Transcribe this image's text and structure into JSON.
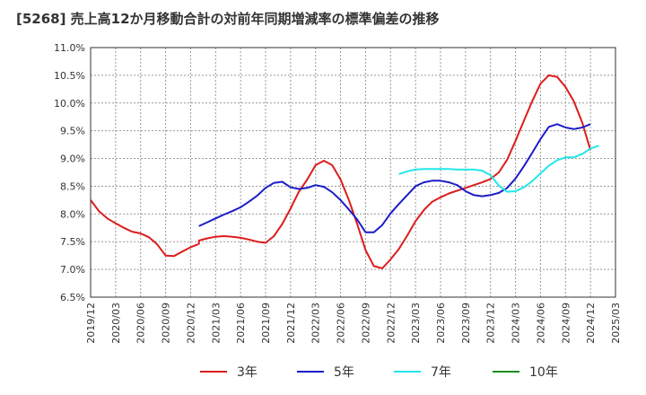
{
  "title": "[5268]  売上高12か月移動合計の対前年同期増減率の標準偏差の推移",
  "chart_data": {
    "type": "line",
    "title": "[5268]  売上高12か月移動合計の対前年同期増減率の標準偏差の推移",
    "xlabel": "",
    "ylabel": "",
    "ylim": [
      6.5,
      11.0
    ],
    "y_ticks": [
      "6.5%",
      "7.0%",
      "7.5%",
      "8.0%",
      "8.5%",
      "9.0%",
      "9.5%",
      "10.0%",
      "10.5%",
      "11.0%"
    ],
    "x_ticks": [
      "2019/12",
      "2020/03",
      "2020/06",
      "2020/09",
      "2020/12",
      "2021/03",
      "2021/06",
      "2021/09",
      "2021/12",
      "2022/03",
      "2022/06",
      "2022/09",
      "2022/12",
      "2023/03",
      "2023/06",
      "2023/09",
      "2023/12",
      "2024/03",
      "2024/06",
      "2024/09",
      "2024/12",
      "2025/03"
    ],
    "grid": true,
    "legend_position": "bottom",
    "series": [
      {
        "name": "3年",
        "color": "#dd1c1c",
        "points": [
          [
            "2019/12",
            8.25
          ],
          [
            "2020/01",
            8.05
          ],
          [
            "2020/02",
            7.92
          ],
          [
            "2020/03",
            7.83
          ],
          [
            "2020/04",
            7.75
          ],
          [
            "2020/05",
            7.68
          ],
          [
            "2020/06",
            7.65
          ],
          [
            "2020/07",
            7.58
          ],
          [
            "2020/08",
            7.45
          ],
          [
            "2020/09",
            7.25
          ],
          [
            "2020/10",
            7.24
          ],
          [
            "2020/11",
            7.32
          ],
          [
            "2020/12",
            7.4
          ],
          [
            "2020/13",
            7.46
          ],
          [
            "2021/01",
            7.52
          ],
          [
            "2021/02",
            7.56
          ],
          [
            "2021/03",
            7.59
          ],
          [
            "2021/04",
            7.6
          ],
          [
            "2021/05",
            7.59
          ],
          [
            "2021/06",
            7.57
          ],
          [
            "2021/07",
            7.54
          ],
          [
            "2021/08",
            7.5
          ],
          [
            "2021/09",
            7.48
          ],
          [
            "2021/10",
            7.6
          ],
          [
            "2021/11",
            7.82
          ],
          [
            "2021/12",
            8.1
          ],
          [
            "2022/01",
            8.4
          ],
          [
            "2022/02",
            8.62
          ],
          [
            "2022/03",
            8.88
          ],
          [
            "2022/04",
            8.96
          ],
          [
            "2022/05",
            8.88
          ],
          [
            "2022/06",
            8.62
          ],
          [
            "2022/07",
            8.25
          ],
          [
            "2022/08",
            7.82
          ],
          [
            "2022/09",
            7.35
          ],
          [
            "2022/10",
            7.06
          ],
          [
            "2022/11",
            7.02
          ],
          [
            "2022/12",
            7.18
          ],
          [
            "2023/01",
            7.37
          ],
          [
            "2023/02",
            7.61
          ],
          [
            "2023/03",
            7.87
          ],
          [
            "2023/04",
            8.07
          ],
          [
            "2023/05",
            8.22
          ],
          [
            "2023/06",
            8.3
          ],
          [
            "2023/07",
            8.37
          ],
          [
            "2023/08",
            8.42
          ],
          [
            "2023/09",
            8.47
          ],
          [
            "2023/10",
            8.52
          ],
          [
            "2023/11",
            8.57
          ],
          [
            "2023/12",
            8.63
          ],
          [
            "2024/01",
            8.75
          ],
          [
            "2024/02",
            8.98
          ],
          [
            "2024/03",
            9.32
          ],
          [
            "2024/04",
            9.68
          ],
          [
            "2024/05",
            10.03
          ],
          [
            "2024/06",
            10.35
          ],
          [
            "2024/07",
            10.5
          ],
          [
            "2024/08",
            10.47
          ],
          [
            "2024/09",
            10.29
          ],
          [
            "2024/10",
            10.03
          ],
          [
            "2024/11",
            9.65
          ],
          [
            "2024/12",
            9.15
          ]
        ]
      },
      {
        "name": "5年",
        "color": "#1c1cc8",
        "points": [
          [
            "2021/01",
            7.78
          ],
          [
            "2021/02",
            7.85
          ],
          [
            "2021/03",
            7.92
          ],
          [
            "2021/04",
            7.99
          ],
          [
            "2021/05",
            8.05
          ],
          [
            "2021/06",
            8.12
          ],
          [
            "2021/07",
            8.22
          ],
          [
            "2021/08",
            8.33
          ],
          [
            "2021/09",
            8.47
          ],
          [
            "2021/10",
            8.56
          ],
          [
            "2021/11",
            8.58
          ],
          [
            "2021/12",
            8.48
          ],
          [
            "2022/01",
            8.45
          ],
          [
            "2022/02",
            8.47
          ],
          [
            "2022/03",
            8.52
          ],
          [
            "2022/04",
            8.49
          ],
          [
            "2022/05",
            8.39
          ],
          [
            "2022/06",
            8.25
          ],
          [
            "2022/07",
            8.08
          ],
          [
            "2022/08",
            7.9
          ],
          [
            "2022/09",
            7.67
          ],
          [
            "2022/10",
            7.67
          ],
          [
            "2022/11",
            7.8
          ],
          [
            "2022/12",
            8.01
          ],
          [
            "2023/01",
            8.18
          ],
          [
            "2023/02",
            8.34
          ],
          [
            "2023/03",
            8.5
          ],
          [
            "2023/04",
            8.57
          ],
          [
            "2023/05",
            8.6
          ],
          [
            "2023/06",
            8.6
          ],
          [
            "2023/07",
            8.57
          ],
          [
            "2023/08",
            8.52
          ],
          [
            "2023/09",
            8.41
          ],
          [
            "2023/10",
            8.34
          ],
          [
            "2023/11",
            8.32
          ],
          [
            "2023/12",
            8.34
          ],
          [
            "2024/01",
            8.38
          ],
          [
            "2024/02",
            8.47
          ],
          [
            "2024/03",
            8.64
          ],
          [
            "2024/04",
            8.86
          ],
          [
            "2024/05",
            9.1
          ],
          [
            "2024/06",
            9.35
          ],
          [
            "2024/07",
            9.57
          ],
          [
            "2024/08",
            9.62
          ],
          [
            "2024/09",
            9.56
          ],
          [
            "2024/10",
            9.53
          ],
          [
            "2024/11",
            9.56
          ],
          [
            "2024/12",
            9.62
          ]
        ]
      },
      {
        "name": "7年",
        "color": "#22e6ea",
        "points": [
          [
            "2023/01",
            8.72
          ],
          [
            "2023/02",
            8.77
          ],
          [
            "2023/03",
            8.8
          ],
          [
            "2023/04",
            8.81
          ],
          [
            "2023/05",
            8.81
          ],
          [
            "2023/06",
            8.81
          ],
          [
            "2023/07",
            8.81
          ],
          [
            "2023/08",
            8.8
          ],
          [
            "2023/09",
            8.8
          ],
          [
            "2023/10",
            8.8
          ],
          [
            "2023/11",
            8.78
          ],
          [
            "2023/12",
            8.7
          ],
          [
            "2024/01",
            8.51
          ],
          [
            "2024/02",
            8.4
          ],
          [
            "2024/03",
            8.41
          ],
          [
            "2024/04",
            8.48
          ],
          [
            "2024/05",
            8.59
          ],
          [
            "2024/06",
            8.73
          ],
          [
            "2024/07",
            8.87
          ],
          [
            "2024/08",
            8.97
          ],
          [
            "2024/09",
            9.02
          ],
          [
            "2024/10",
            9.02
          ],
          [
            "2024/11",
            9.08
          ],
          [
            "2024/12",
            9.18
          ],
          [
            "2025/01",
            9.23
          ]
        ]
      },
      {
        "name": "10年",
        "color": "#1a8c1a",
        "points": []
      }
    ]
  }
}
